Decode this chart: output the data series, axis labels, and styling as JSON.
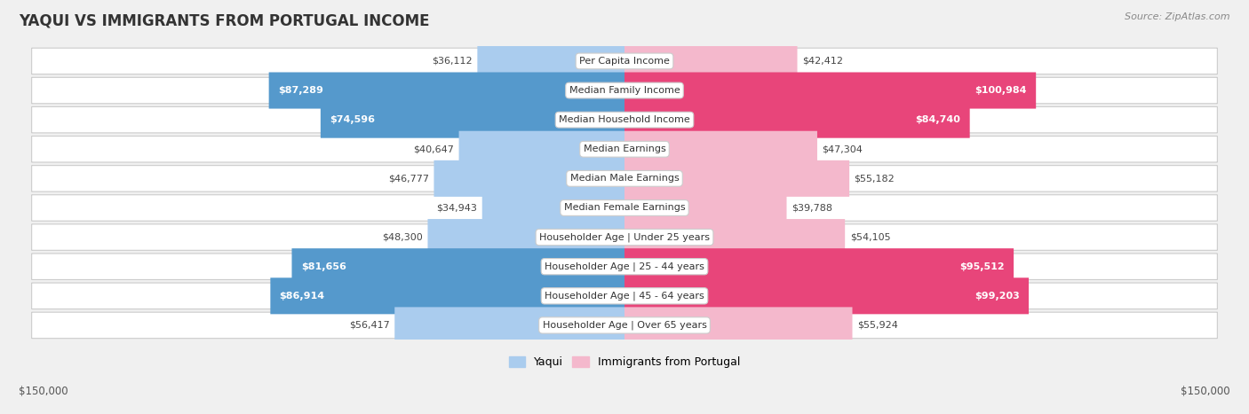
{
  "title": "YAQUI VS IMMIGRANTS FROM PORTUGAL INCOME",
  "source": "Source: ZipAtlas.com",
  "categories": [
    "Per Capita Income",
    "Median Family Income",
    "Median Household Income",
    "Median Earnings",
    "Median Male Earnings",
    "Median Female Earnings",
    "Householder Age | Under 25 years",
    "Householder Age | 25 - 44 years",
    "Householder Age | 45 - 64 years",
    "Householder Age | Over 65 years"
  ],
  "yaqui_values": [
    36112,
    87289,
    74596,
    40647,
    46777,
    34943,
    48300,
    81656,
    86914,
    56417
  ],
  "portugal_values": [
    42412,
    100984,
    84740,
    47304,
    55182,
    39788,
    54105,
    95512,
    99203,
    55924
  ],
  "yaqui_labels": [
    "$36,112",
    "$87,289",
    "$74,596",
    "$40,647",
    "$46,777",
    "$34,943",
    "$48,300",
    "$81,656",
    "$86,914",
    "$56,417"
  ],
  "portugal_labels": [
    "$42,412",
    "$100,984",
    "$84,740",
    "$47,304",
    "$55,182",
    "$39,788",
    "$54,105",
    "$95,512",
    "$99,203",
    "$55,924"
  ],
  "yaqui_color_light": "#aaccee",
  "yaqui_color_dark": "#5599cc",
  "portugal_color_light": "#f4b8cc",
  "portugal_color_dark": "#e8457a",
  "large_threshold": 60000,
  "max_value": 150000,
  "xlabel_left": "$150,000",
  "xlabel_right": "$150,000",
  "legend_yaqui": "Yaqui",
  "legend_portugal": "Immigrants from Portugal",
  "background_color": "#f0f0f0",
  "row_bg_color": "#e8e8e8",
  "bar_bg_color": "#ffffff",
  "title_fontsize": 12,
  "source_fontsize": 8,
  "category_fontsize": 8,
  "value_fontsize": 8
}
